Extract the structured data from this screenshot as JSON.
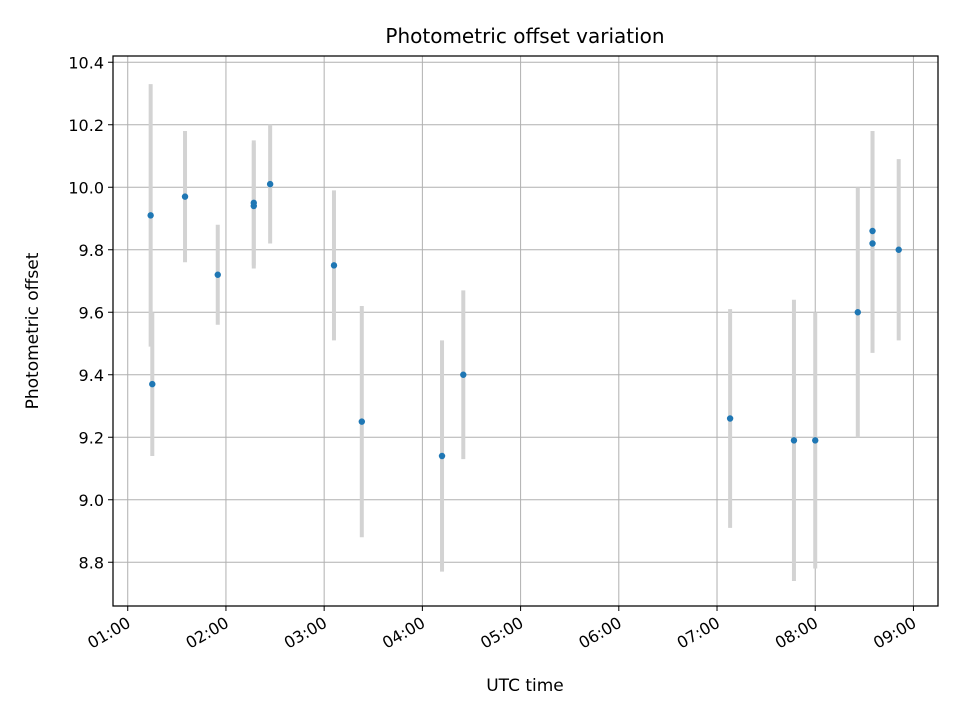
{
  "chart_data": {
    "type": "scatter",
    "title": "Photometric offset variation",
    "xlabel": "UTC time",
    "ylabel": "Photometric offset",
    "grid": true,
    "xlim": [
      "00:51",
      "09:15"
    ],
    "ylim": [
      8.66,
      10.42
    ],
    "x_ticks": [
      "01:00",
      "02:00",
      "03:00",
      "04:00",
      "05:00",
      "06:00",
      "07:00",
      "08:00",
      "09:00"
    ],
    "y_ticks": [
      "8.8",
      "9.0",
      "9.2",
      "9.4",
      "9.6",
      "9.8",
      "10.0",
      "10.2",
      "10.4"
    ],
    "colors": {
      "point": "#1f77b4",
      "errorbar": "#d3d3d3",
      "grid": "#b0b0b0"
    },
    "points": [
      {
        "time": "01:14",
        "y": 9.91,
        "err": 0.42
      },
      {
        "time": "01:15",
        "y": 9.37,
        "err": 0.23
      },
      {
        "time": "01:35",
        "y": 9.97,
        "err": 0.21
      },
      {
        "time": "01:55",
        "y": 9.72,
        "err": 0.16
      },
      {
        "time": "02:17",
        "y": 9.94,
        "err": 0.2
      },
      {
        "time": "02:17",
        "y": 9.95,
        "err": 0.2
      },
      {
        "time": "02:27",
        "y": 10.01,
        "err": 0.19
      },
      {
        "time": "03:06",
        "y": 9.75,
        "err": 0.24
      },
      {
        "time": "03:23",
        "y": 9.25,
        "err": 0.37
      },
      {
        "time": "04:12",
        "y": 9.14,
        "err": 0.37
      },
      {
        "time": "04:25",
        "y": 9.4,
        "err": 0.27
      },
      {
        "time": "07:08",
        "y": 9.26,
        "err": 0.35
      },
      {
        "time": "07:47",
        "y": 9.19,
        "err": 0.45
      },
      {
        "time": "08:00",
        "y": 9.19,
        "err": 0.41
      },
      {
        "time": "08:26",
        "y": 9.6,
        "err": 0.4
      },
      {
        "time": "08:35",
        "y": 9.86,
        "err": 0.32
      },
      {
        "time": "08:35",
        "y": 9.82,
        "err": 0.35
      },
      {
        "time": "08:51",
        "y": 9.8,
        "err": 0.29
      }
    ]
  }
}
